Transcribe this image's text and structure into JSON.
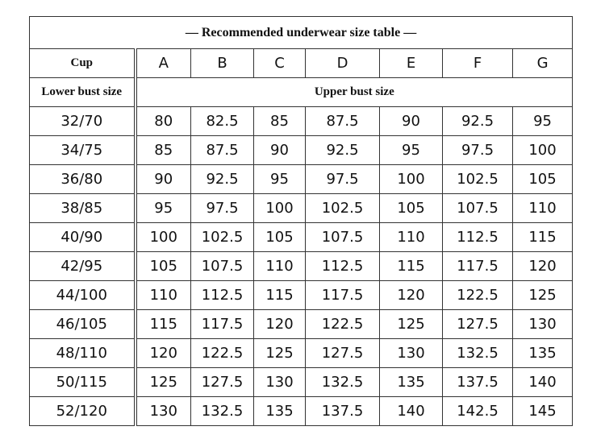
{
  "title": "— Recommended underwear size table —",
  "header": {
    "cup_label": "Cup",
    "cups": [
      "A",
      "B",
      "C",
      "D",
      "E",
      "F",
      "G"
    ],
    "lower_label": "Lower bust size",
    "upper_label": "Upper bust size"
  },
  "rows": [
    {
      "size": "32/70",
      "values": [
        80,
        82.5,
        85,
        87.5,
        90,
        92.5,
        95
      ]
    },
    {
      "size": "34/75",
      "values": [
        85,
        87.5,
        90,
        92.5,
        95,
        97.5,
        100
      ]
    },
    {
      "size": "36/80",
      "values": [
        90,
        92.5,
        95,
        97.5,
        100,
        102.5,
        105
      ]
    },
    {
      "size": "38/85",
      "values": [
        95,
        97.5,
        100,
        102.5,
        105,
        107.5,
        110
      ]
    },
    {
      "size": "40/90",
      "values": [
        100,
        102.5,
        105,
        107.5,
        110,
        112.5,
        115
      ]
    },
    {
      "size": "42/95",
      "values": [
        105,
        107.5,
        110,
        112.5,
        115,
        117.5,
        120
      ]
    },
    {
      "size": "44/100",
      "values": [
        110,
        112.5,
        115,
        117.5,
        120,
        122.5,
        125
      ]
    },
    {
      "size": "46/105",
      "values": [
        115,
        117.5,
        120,
        122.5,
        125,
        127.5,
        130
      ]
    },
    {
      "size": "48/110",
      "values": [
        120,
        122.5,
        125,
        127.5,
        130,
        132.5,
        135
      ]
    },
    {
      "size": "50/115",
      "values": [
        125,
        127.5,
        130,
        132.5,
        135,
        137.5,
        140
      ]
    },
    {
      "size": "52/120",
      "values": [
        130,
        132.5,
        135,
        137.5,
        140,
        142.5,
        145
      ]
    }
  ]
}
